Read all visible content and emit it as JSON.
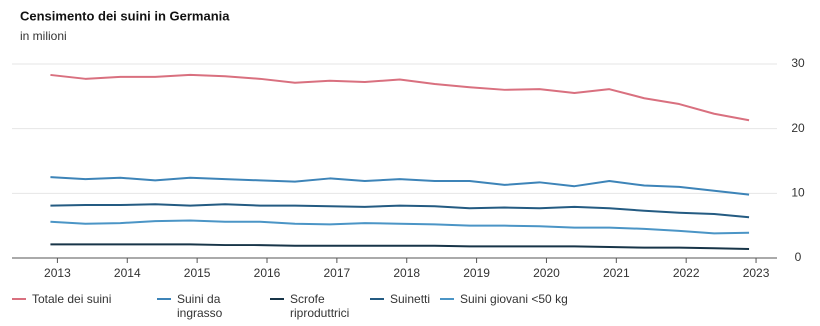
{
  "chart_data": {
    "type": "line",
    "title": "Censimento dei suini in Germania",
    "subtitle": "in milioni",
    "x": [
      2012.9,
      2013.4,
      2013.9,
      2014.4,
      2014.9,
      2015.4,
      2015.9,
      2016.4,
      2016.9,
      2017.4,
      2017.9,
      2018.4,
      2018.9,
      2019.4,
      2019.9,
      2020.4,
      2020.9,
      2021.4,
      2021.9,
      2022.4,
      2022.9
    ],
    "series": [
      {
        "name": "Totale dei suini",
        "color": "#d9707f",
        "values": [
          28.3,
          27.7,
          28.0,
          28.0,
          28.3,
          28.1,
          27.7,
          27.1,
          27.4,
          27.2,
          27.6,
          26.9,
          26.4,
          26.0,
          26.1,
          25.5,
          26.1,
          24.7,
          23.8,
          22.3,
          21.3
        ]
      },
      {
        "name": "Suini da ingrasso",
        "color": "#3d84b8",
        "values": [
          12.5,
          12.2,
          12.4,
          12.0,
          12.4,
          12.2,
          12.0,
          11.8,
          12.3,
          11.9,
          12.2,
          11.9,
          11.9,
          11.3,
          11.7,
          11.1,
          11.9,
          11.2,
          11.0,
          10.4,
          9.8
        ]
      },
      {
        "name": "Scrofe riproduttrici",
        "color": "#183548",
        "values": [
          2.1,
          2.1,
          2.1,
          2.1,
          2.1,
          2.0,
          2.0,
          1.9,
          1.9,
          1.9,
          1.9,
          1.9,
          1.8,
          1.8,
          1.8,
          1.8,
          1.7,
          1.6,
          1.6,
          1.5,
          1.4
        ]
      },
      {
        "name": "Suinetti",
        "color": "#245b82",
        "values": [
          8.1,
          8.2,
          8.2,
          8.3,
          8.1,
          8.3,
          8.1,
          8.1,
          8.0,
          7.9,
          8.1,
          8.0,
          7.7,
          7.8,
          7.7,
          7.9,
          7.7,
          7.3,
          7.0,
          6.8,
          6.3
        ]
      },
      {
        "name": "Suini giovani <50 kg",
        "color": "#4b95c6",
        "values": [
          5.6,
          5.3,
          5.4,
          5.7,
          5.8,
          5.6,
          5.6,
          5.3,
          5.2,
          5.4,
          5.3,
          5.2,
          5.0,
          5.0,
          4.9,
          4.7,
          4.7,
          4.5,
          4.2,
          3.8,
          3.9
        ]
      }
    ],
    "xlim": [
      2012.35,
      2023.3
    ],
    "xticks": [
      2013,
      2014,
      2015,
      2016,
      2017,
      2018,
      2019,
      2020,
      2021,
      2022,
      2023
    ],
    "ylim": [
      0,
      32
    ],
    "yticks": [
      0,
      10,
      20,
      30
    ],
    "grid": true,
    "legend": "bottom"
  }
}
